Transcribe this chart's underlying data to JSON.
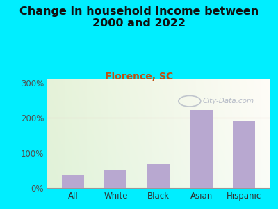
{
  "title": "Change in household income between\n2000 and 2022",
  "subtitle": "Florence, SC",
  "categories": [
    "All",
    "White",
    "Black",
    "Asian",
    "Hispanic"
  ],
  "values": [
    38,
    52,
    68,
    222,
    190
  ],
  "bar_color": "#b8a8d0",
  "title_fontsize": 11.5,
  "subtitle_fontsize": 10,
  "subtitle_color": "#c05010",
  "background_outer": "#00eeff",
  "ylim": [
    0,
    310
  ],
  "yticks": [
    0,
    100,
    200,
    300
  ],
  "yticklabels": [
    "0%",
    "100%",
    "200%",
    "300%"
  ],
  "watermark": "City-Data.com",
  "watermark_color": "#aab0c0",
  "grid_color": "#e8b8b8",
  "axis_label_color": "#303030",
  "tick_label_color": "#505050"
}
